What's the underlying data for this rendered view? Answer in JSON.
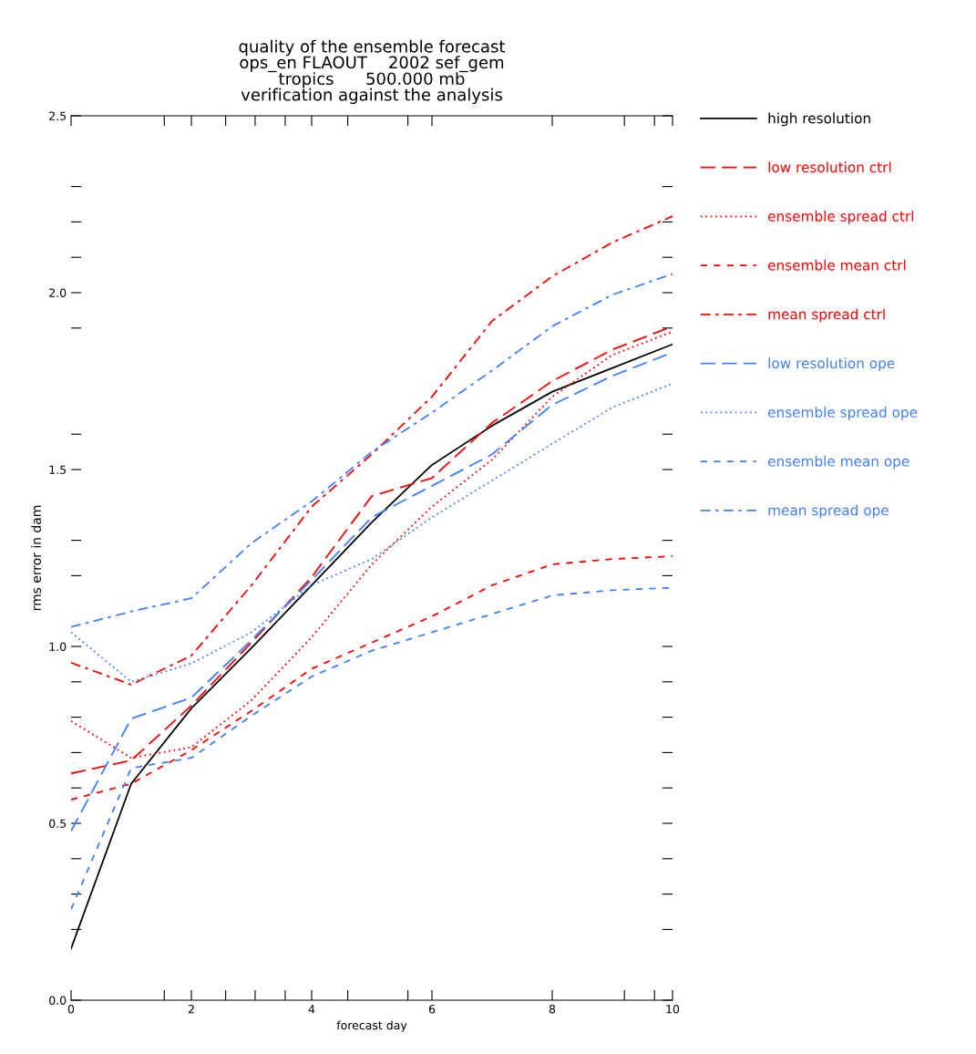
{
  "chart_data": {
    "type": "line",
    "title": "quality of the ensemble forecast\nops_en FLAOUT    2002 sef_gem\ntropics      500.000 mb\nverification against the analysis",
    "xlabel": "forecast day",
    "ylabel": "rms error in dam",
    "x": [
      0,
      1,
      2,
      3,
      4,
      5,
      6,
      7,
      8,
      9,
      10
    ],
    "xlim": [
      0,
      10
    ],
    "ylim": [
      0,
      2.5
    ],
    "xticks": [
      0,
      {
        "value": 1.55,
        "label": null
      },
      2,
      {
        "value": 2.57,
        "label": null
      },
      {
        "value": 3.06,
        "label": null
      },
      {
        "value": 3.56,
        "label": null
      },
      4,
      {
        "value": 4.6,
        "label": null
      },
      {
        "value": 5.6,
        "label": null
      },
      6,
      8,
      {
        "value": 9.2,
        "label": null
      },
      {
        "value": 9.7,
        "label": null
      },
      10
    ],
    "yticks": [
      {
        "value": 0,
        "label": "0.0"
      },
      {
        "value": 0.2,
        "label": null
      },
      {
        "value": 0.3,
        "label": null
      },
      {
        "value": 0.4,
        "label": null
      },
      {
        "value": 0.5,
        "label": "0.5"
      },
      {
        "value": 0.6,
        "label": null
      },
      {
        "value": 0.7,
        "label": null
      },
      {
        "value": 0.8,
        "label": null
      },
      {
        "value": 0.9,
        "label": null
      },
      {
        "value": 1.0,
        "label": "1.0"
      },
      {
        "value": 1.2,
        "label": null
      },
      {
        "value": 1.3,
        "label": null
      },
      {
        "value": 1.5,
        "label": "1.5"
      },
      {
        "value": 1.6,
        "label": null
      },
      {
        "value": 1.9,
        "label": null
      },
      {
        "value": 2.0,
        "label": "2.0"
      },
      {
        "value": 2.1,
        "label": null
      },
      {
        "value": 2.2,
        "label": null
      },
      {
        "value": 2.3,
        "label": null
      },
      {
        "value": 2.5,
        "label": "2.5"
      }
    ],
    "grid": false,
    "legend": "right",
    "marker": "none",
    "series": [
      {
        "name": "high resolution",
        "color": "#000000",
        "line_style": "solid",
        "values": [
          0.146,
          0.612,
          0.825,
          0.996,
          1.173,
          1.351,
          1.513,
          1.624,
          1.72,
          1.787,
          1.854
        ]
      },
      {
        "name": "low resolution ctrl",
        "color": "#ff0000",
        "line_style": "longdash",
        "values": [
          0.641,
          0.678,
          0.833,
          1.011,
          1.196,
          1.425,
          1.476,
          1.632,
          1.75,
          1.839,
          1.905
        ]
      },
      {
        "name": "ensemble spread ctrl",
        "color": "#ff0000",
        "line_style": "dotted",
        "values": [
          0.789,
          0.685,
          0.715,
          0.848,
          1.026,
          1.232,
          1.395,
          1.528,
          1.706,
          1.824,
          1.89
        ]
      },
      {
        "name": "ensemble mean ctrl",
        "color": "#ff0000",
        "line_style": "dashed",
        "values": [
          0.567,
          0.612,
          0.707,
          0.818,
          0.937,
          1.011,
          1.085,
          1.173,
          1.232,
          1.247,
          1.255
        ]
      },
      {
        "name": "mean spread ctrl",
        "color": "#ff0000",
        "line_style": "dashdot",
        "values": [
          0.954,
          0.892,
          0.974,
          1.173,
          1.395,
          1.543,
          1.706,
          1.92,
          2.046,
          2.142,
          2.216
        ]
      },
      {
        "name": "low resolution ope",
        "color": "#3f7fff",
        "line_style": "longdash",
        "values": [
          0.478,
          0.796,
          0.855,
          1.018,
          1.188,
          1.365,
          1.454,
          1.543,
          1.683,
          1.765,
          1.831
        ]
      },
      {
        "name": "ensemble spread ope",
        "color": "#3f7fff",
        "line_style": "dotted",
        "values": [
          1.04,
          0.9,
          0.952,
          1.04,
          1.173,
          1.247,
          1.365,
          1.469,
          1.573,
          1.676,
          1.743
        ]
      },
      {
        "name": "ensemble mean ope",
        "color": "#3f7fff",
        "line_style": "dashed",
        "values": [
          0.257,
          0.656,
          0.685,
          0.804,
          0.915,
          0.988,
          1.04,
          1.092,
          1.144,
          1.159,
          1.166
        ]
      },
      {
        "name": "mean spread ope",
        "color": "#3f7fff",
        "line_style": "dashdot",
        "values": [
          1.055,
          1.099,
          1.136,
          1.292,
          1.41,
          1.55,
          1.661,
          1.78,
          1.905,
          1.994,
          2.053
        ]
      }
    ]
  }
}
